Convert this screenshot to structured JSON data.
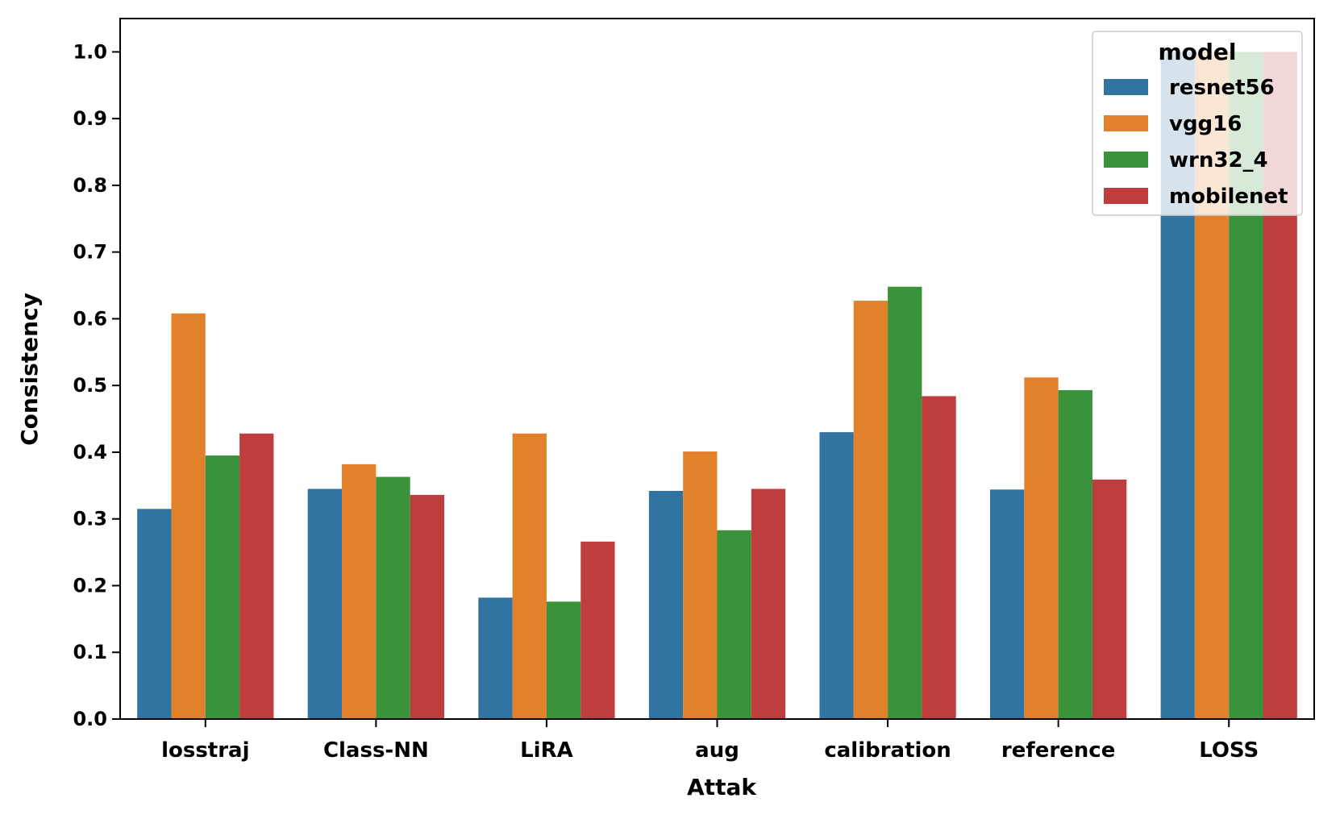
{
  "chart_data": {
    "type": "bar",
    "xlabel": "Attak",
    "ylabel": "Consistency",
    "ylim": [
      0,
      1.05
    ],
    "yticks": [
      "0.0",
      "0.1",
      "0.2",
      "0.3",
      "0.4",
      "0.5",
      "0.6",
      "0.7",
      "0.8",
      "0.9",
      "1.0"
    ],
    "categories": [
      "losstraj",
      "Class-NN",
      "LiRA",
      "aug",
      "calibration",
      "reference",
      "LOSS"
    ],
    "legend": {
      "title": "model",
      "placement": "top-right"
    },
    "grid": false,
    "series": [
      {
        "name": "resnet56",
        "color": "#3274a1",
        "values": [
          0.315,
          0.345,
          0.182,
          0.342,
          0.43,
          0.344,
          1.0
        ]
      },
      {
        "name": "vgg16",
        "color": "#e1812c",
        "values": [
          0.608,
          0.382,
          0.428,
          0.401,
          0.627,
          0.512,
          1.0
        ]
      },
      {
        "name": "wrn32_4",
        "color": "#3a923a",
        "values": [
          0.395,
          0.363,
          0.176,
          0.283,
          0.648,
          0.493,
          1.0
        ]
      },
      {
        "name": "mobilenet",
        "color": "#c03d3e",
        "values": [
          0.428,
          0.336,
          0.266,
          0.345,
          0.484,
          0.359,
          1.0
        ]
      }
    ]
  }
}
